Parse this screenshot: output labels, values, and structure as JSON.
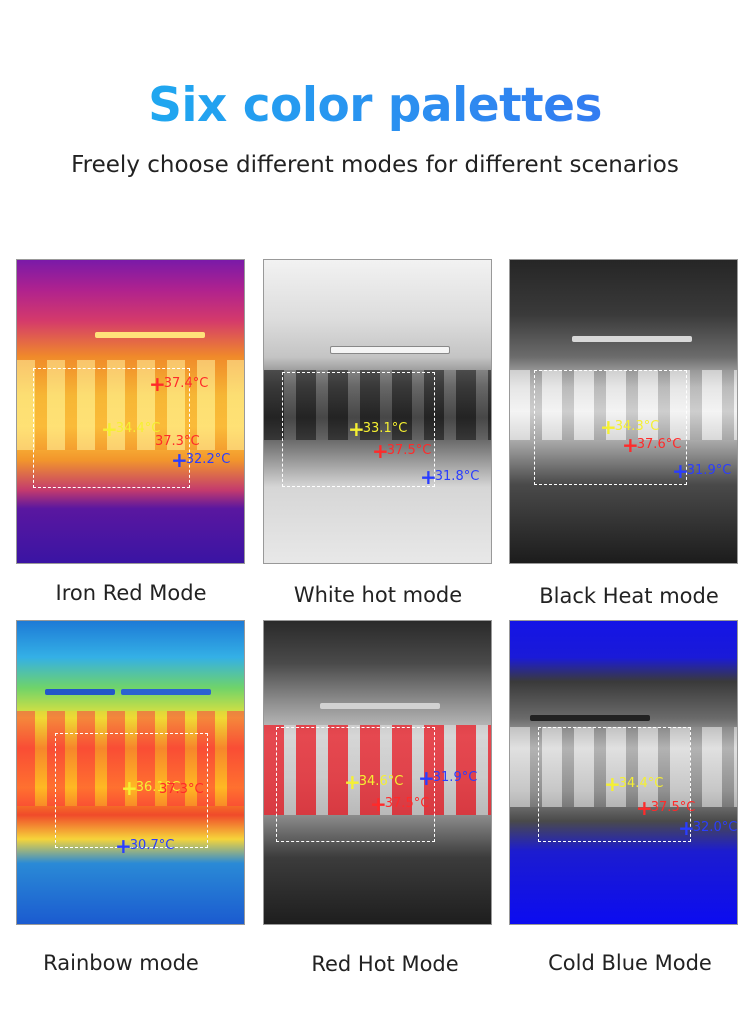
{
  "header": {
    "title": "Six color palettes",
    "subtitle": "Freely choose different modes for different scenarios"
  },
  "panels": [
    {
      "label": "Iron Red Mode",
      "markers": {
        "max": "37.4°C",
        "center": "34.4°C",
        "second": "37.3°C",
        "min": "32.2°C"
      }
    },
    {
      "label": "White hot mode",
      "markers": {
        "center": "33.1°C",
        "max": "37.5°C",
        "min": "31.8°C"
      }
    },
    {
      "label": "Black Heat mode",
      "markers": {
        "center": "34.3°C",
        "max": "37.6°C",
        "min": "31.9°C"
      }
    },
    {
      "label": "Rainbow mode",
      "markers": {
        "center": "36.1°C",
        "max": "37.3°C",
        "min": "30.7°C"
      }
    },
    {
      "label": "Red Hot Mode",
      "markers": {
        "center": "34.6°C",
        "max": "37.5°C",
        "min": "31.9°C"
      }
    },
    {
      "label": "Cold Blue Mode",
      "markers": {
        "center": "34.4°C",
        "max": "37.5°C",
        "min": "32.0°C"
      }
    }
  ],
  "colors": {
    "title_gradient_start": "#19b5ef",
    "title_gradient_end": "#3a6df2",
    "max_marker": "#ff2a2a",
    "min_marker": "#2a3dff",
    "center_marker": "#f5f032"
  }
}
